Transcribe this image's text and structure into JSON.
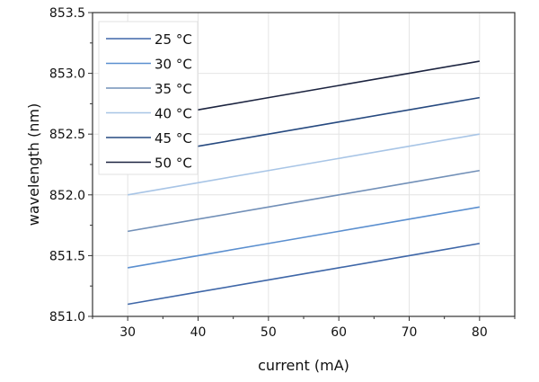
{
  "chart_data": {
    "type": "line",
    "title": "",
    "xlabel": "current (mA)",
    "ylabel": "wavelength (nm)",
    "xlim": [
      25,
      85
    ],
    "ylim": [
      851.0,
      853.5
    ],
    "xticks": [
      30,
      40,
      50,
      60,
      70,
      80
    ],
    "yticks": [
      "851.0",
      "851.5",
      "852.0",
      "852.5",
      "853.0",
      "853.5"
    ],
    "grid": true,
    "legend_position": "top-left",
    "x": [
      30,
      40,
      50,
      60,
      70,
      80
    ],
    "series": [
      {
        "name": "25 °C",
        "color": "#3f67a8",
        "values": [
          851.1,
          851.2,
          851.3,
          851.4,
          851.5,
          851.6
        ]
      },
      {
        "name": "30 °C",
        "color": "#5b8fcf",
        "values": [
          851.4,
          851.5,
          851.6,
          851.7,
          851.8,
          851.9
        ]
      },
      {
        "name": "35 °C",
        "color": "#7290b8",
        "values": [
          851.7,
          851.8,
          851.9,
          852.0,
          852.1,
          852.2
        ]
      },
      {
        "name": "40 °C",
        "color": "#a8c5e6",
        "values": [
          852.0,
          852.1,
          852.2,
          852.3,
          852.4,
          852.5
        ]
      },
      {
        "name": "45 °C",
        "color": "#274a80",
        "values": [
          852.3,
          852.4,
          852.5,
          852.6,
          852.7,
          852.8
        ]
      },
      {
        "name": "50 °C",
        "color": "#1c2440",
        "values": [
          852.6,
          852.7,
          852.8,
          852.9,
          853.0,
          853.1
        ]
      }
    ]
  }
}
